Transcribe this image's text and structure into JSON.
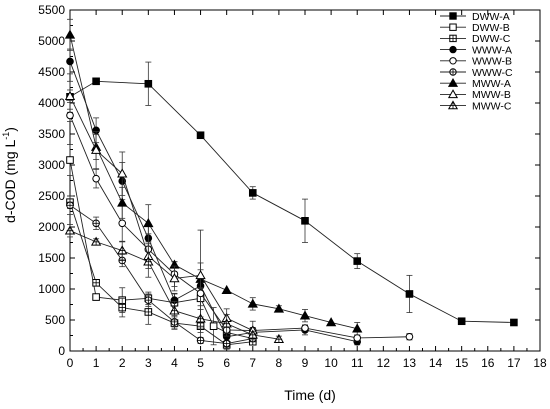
{
  "chart_data": {
    "type": "line",
    "xlabel": "Time (d)",
    "ylabel": "d-COD (mg L",
    "ylabel_sup": "-1",
    "ylabel_close": ")",
    "xlim": [
      0,
      18
    ],
    "ylim": [
      0,
      5500
    ],
    "xticks": [
      0,
      1,
      2,
      3,
      4,
      5,
      6,
      7,
      8,
      9,
      10,
      11,
      12,
      13,
      14,
      15,
      16,
      17,
      18
    ],
    "yticks": [
      0,
      500,
      1000,
      1500,
      2000,
      2500,
      3000,
      3500,
      4000,
      4500,
      5000,
      5500
    ],
    "grid": false,
    "legend_position": "top-right",
    "series": [
      {
        "name": "DWW-A",
        "marker": "square",
        "filled": true,
        "x": [
          0,
          1,
          3,
          5,
          7,
          9,
          11,
          13,
          15,
          17
        ],
        "y": [
          4100,
          4350,
          4310,
          3480,
          2550,
          2100,
          1450,
          920,
          480,
          460
        ],
        "err": [
          250,
          50,
          350,
          0,
          100,
          350,
          120,
          300,
          0,
          0
        ]
      },
      {
        "name": "DWW-B",
        "marker": "square",
        "filled": false,
        "x": [
          0,
          1,
          2,
          3,
          4,
          5,
          5.5,
          6,
          7
        ],
        "y": [
          3080,
          870,
          820,
          850,
          780,
          850,
          400,
          300,
          200
        ],
        "err": [
          250,
          50,
          200,
          100,
          150,
          300,
          300,
          150,
          50
        ]
      },
      {
        "name": "DWW-C",
        "marker": "square-cross",
        "filled": false,
        "x": [
          0,
          1,
          2,
          3,
          4,
          5,
          6,
          7
        ],
        "y": [
          2400,
          1100,
          700,
          630,
          450,
          400,
          100,
          150
        ],
        "err": [
          100,
          50,
          150,
          200,
          100,
          100,
          50,
          0
        ]
      },
      {
        "name": "WWW-A",
        "marker": "circle",
        "filled": true,
        "x": [
          0,
          1,
          2,
          3,
          4,
          5,
          6,
          7,
          9,
          11
        ],
        "y": [
          4670,
          3560,
          2740,
          1820,
          820,
          1050,
          230,
          300,
          340,
          150
        ],
        "err": [
          200,
          200,
          300,
          200,
          100,
          900,
          200,
          50,
          80,
          50
        ]
      },
      {
        "name": "WWW-B",
        "marker": "circle",
        "filled": false,
        "x": [
          0,
          1,
          2,
          3,
          4,
          5,
          6,
          7,
          9,
          11,
          13
        ],
        "y": [
          3800,
          2780,
          2060,
          1640,
          1240,
          930,
          340,
          330,
          370,
          210,
          230
        ],
        "err": [
          100,
          150,
          300,
          250,
          200,
          200,
          100,
          50,
          50,
          50,
          50
        ]
      },
      {
        "name": "WWW-C",
        "marker": "circle-cross",
        "filled": false,
        "x": [
          0,
          1,
          2,
          3,
          4,
          5,
          6,
          7
        ],
        "y": [
          2350,
          2060,
          1460,
          820,
          470,
          170,
          120,
          200
        ],
        "err": [
          150,
          100,
          100,
          100,
          100,
          50,
          50,
          50
        ]
      },
      {
        "name": "MWW-A",
        "marker": "triangle",
        "filled": true,
        "x": [
          0,
          1,
          2,
          3,
          4,
          5,
          6,
          7,
          8,
          9,
          10,
          11
        ],
        "y": [
          5100,
          3290,
          2390,
          2060,
          1390,
          1160,
          980,
          760,
          680,
          570,
          460,
          360
        ],
        "err": [
          250,
          200,
          250,
          300,
          50,
          150,
          0,
          100,
          50,
          100,
          0,
          100
        ]
      },
      {
        "name": "MWW-B",
        "marker": "triangle",
        "filled": false,
        "x": [
          0,
          1,
          2,
          3,
          4,
          5,
          6,
          7
        ],
        "y": [
          4110,
          3240,
          2860,
          1530,
          1170,
          1220,
          530,
          330
        ],
        "err": [
          100,
          300,
          350,
          200,
          200,
          200,
          150,
          150
        ]
      },
      {
        "name": "MWW-C",
        "marker": "triangle-cross",
        "filled": false,
        "x": [
          0,
          1,
          2,
          3,
          4,
          5,
          6,
          7,
          8
        ],
        "y": [
          1940,
          1760,
          1620,
          1440,
          650,
          520,
          440,
          260,
          190
        ],
        "err": [
          100,
          50,
          150,
          250,
          150,
          150,
          150,
          50,
          50
        ]
      }
    ]
  }
}
